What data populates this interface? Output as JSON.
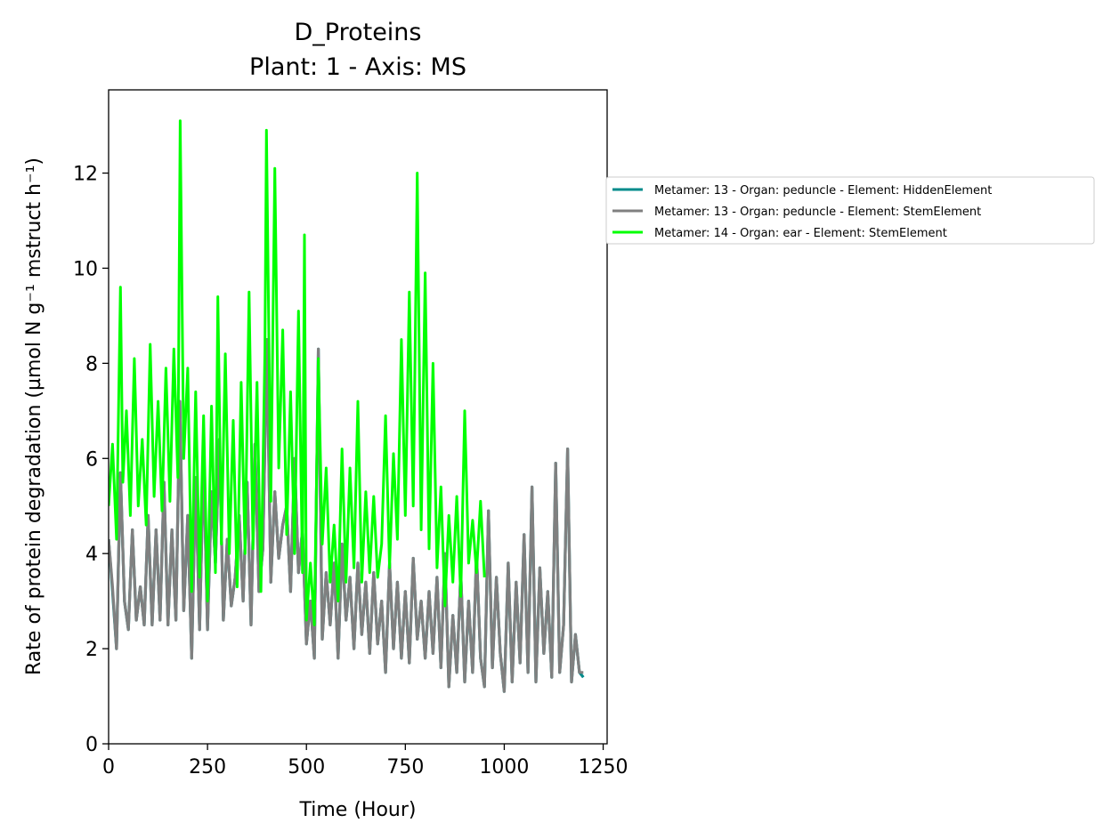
{
  "chart_data": {
    "type": "line",
    "title": "D_Proteins",
    "subtitle": "Plant: 1 - Axis: MS",
    "xlabel": "Time (Hour)",
    "ylabel": "Rate of protein degradation (µmol N g⁻¹ mstruct h⁻¹)",
    "xlim": [
      0,
      1260
    ],
    "ylim": [
      0,
      13.75
    ],
    "xticks": [
      0,
      250,
      500,
      750,
      1000,
      1250
    ],
    "xtick_labels": [
      "0",
      "250",
      "500",
      "750",
      "1000",
      "1250"
    ],
    "yticks": [
      0,
      2,
      4,
      6,
      8,
      10,
      12
    ],
    "ytick_labels": [
      "0",
      "2",
      "4",
      "6",
      "8",
      "10",
      "12"
    ],
    "grid": false,
    "legend_position": "right",
    "series": [
      {
        "name": "Metamer: 13 - Organ: peduncle - Element: HiddenElement",
        "color": "#008b8b",
        "x": [
          0,
          10,
          20,
          30,
          40,
          50,
          60,
          70,
          80,
          90,
          100,
          110,
          120,
          130,
          140,
          150,
          160,
          170,
          180,
          190,
          200,
          210,
          220,
          230,
          240,
          250,
          260,
          270,
          280,
          290,
          300,
          310,
          320,
          330,
          340,
          350,
          360,
          370,
          380,
          390,
          400,
          410,
          420,
          430,
          440,
          450,
          460,
          470,
          480,
          490,
          500,
          510,
          520,
          530,
          540,
          550,
          560,
          570,
          580,
          590,
          600,
          610,
          620,
          630,
          640,
          650,
          660,
          670,
          680,
          690,
          700,
          710,
          720,
          730,
          740,
          750,
          760,
          770,
          780,
          790,
          800,
          810,
          820,
          830,
          840,
          850,
          860,
          870,
          880,
          890,
          900,
          910,
          920,
          930,
          940,
          950,
          960,
          970,
          980,
          990,
          1000,
          1010,
          1020,
          1030,
          1040,
          1050,
          1060,
          1070,
          1080,
          1090,
          1100,
          1110,
          1120,
          1130,
          1140,
          1150,
          1160,
          1170,
          1180,
          1190,
          1200
        ],
        "y": [
          4.3,
          3.2,
          2.0,
          5.7,
          3.0,
          2.4,
          4.5,
          2.6,
          3.3,
          2.5,
          4.8,
          2.5,
          4.5,
          2.6,
          5.5,
          2.5,
          4.5,
          2.6,
          7.2,
          2.8,
          4.8,
          1.8,
          5.6,
          2.4,
          6.0,
          2.4,
          5.3,
          3.8,
          6.4,
          2.6,
          4.3,
          2.9,
          3.5,
          4.8,
          3.0,
          5.5,
          2.5,
          6.3,
          3.2,
          4.1,
          8.5,
          3.4,
          5.3,
          3.9,
          4.6,
          5.0,
          3.2,
          6.0,
          3.6,
          4.5,
          2.1,
          3.0,
          1.8,
          8.3,
          2.2,
          3.6,
          2.5,
          3.8,
          1.8,
          4.2,
          2.6,
          3.5,
          2.0,
          3.8,
          2.3,
          3.4,
          1.9,
          3.6,
          2.1,
          3.0,
          1.5,
          3.8,
          2.0,
          3.4,
          1.8,
          3.2,
          1.7,
          3.9,
          2.2,
          3.0,
          1.8,
          3.2,
          1.9,
          3.5,
          1.6,
          4.0,
          1.2,
          2.7,
          1.5,
          3.6,
          1.3,
          3.0,
          1.5,
          4.0,
          1.8,
          1.2,
          4.9,
          1.6,
          3.5,
          1.9,
          1.1,
          3.8,
          1.3,
          3.4,
          1.7,
          4.4,
          1.5,
          5.4,
          1.3,
          3.7,
          1.9,
          3.2,
          1.4,
          5.9,
          1.5,
          2.5,
          6.2,
          1.3,
          2.3,
          1.5,
          1.4
        ]
      },
      {
        "name": "Metamer: 13 - Organ: peduncle - Element: StemElement",
        "color": "#808080",
        "x": [
          0,
          10,
          20,
          30,
          40,
          50,
          60,
          70,
          80,
          90,
          100,
          110,
          120,
          130,
          140,
          150,
          160,
          170,
          180,
          190,
          200,
          210,
          220,
          230,
          240,
          250,
          260,
          270,
          280,
          290,
          300,
          310,
          320,
          330,
          340,
          350,
          360,
          370,
          380,
          390,
          400,
          410,
          420,
          430,
          440,
          450,
          460,
          470,
          480,
          490,
          500,
          510,
          520,
          530,
          540,
          550,
          560,
          570,
          580,
          590,
          600,
          610,
          620,
          630,
          640,
          650,
          660,
          670,
          680,
          690,
          700,
          710,
          720,
          730,
          740,
          750,
          760,
          770,
          780,
          790,
          800,
          810,
          820,
          830,
          840,
          850,
          860,
          870,
          880,
          890,
          900,
          910,
          920,
          930,
          940,
          950,
          960,
          970,
          980,
          990,
          1000,
          1010,
          1020,
          1030,
          1040,
          1050,
          1060,
          1070,
          1080,
          1090,
          1100,
          1110,
          1120,
          1130,
          1140,
          1150,
          1160,
          1170,
          1180,
          1190,
          1200
        ],
        "y": [
          4.3,
          3.3,
          2.0,
          5.7,
          3.0,
          2.4,
          4.5,
          2.6,
          3.3,
          2.5,
          4.8,
          2.5,
          4.5,
          2.6,
          5.5,
          2.5,
          4.5,
          2.6,
          7.2,
          2.8,
          4.8,
          1.8,
          5.6,
          2.4,
          6.0,
          2.4,
          5.3,
          3.8,
          6.4,
          2.6,
          4.3,
          2.9,
          3.5,
          4.8,
          3.0,
          5.5,
          2.5,
          6.3,
          3.2,
          4.1,
          8.5,
          3.4,
          5.3,
          3.9,
          4.6,
          5.0,
          3.2,
          6.0,
          3.6,
          4.5,
          2.1,
          3.0,
          1.8,
          8.3,
          2.2,
          3.6,
          2.5,
          3.8,
          1.8,
          4.2,
          2.6,
          3.5,
          2.0,
          3.8,
          2.3,
          3.4,
          1.9,
          3.6,
          2.1,
          3.0,
          1.5,
          3.8,
          2.0,
          3.4,
          1.8,
          3.2,
          1.7,
          3.9,
          2.2,
          3.0,
          1.8,
          3.2,
          1.9,
          3.5,
          1.6,
          4.0,
          1.2,
          2.7,
          1.5,
          3.6,
          1.3,
          3.0,
          1.5,
          4.0,
          1.8,
          1.2,
          4.9,
          1.6,
          3.5,
          1.9,
          1.1,
          3.8,
          1.3,
          3.4,
          1.7,
          4.4,
          1.5,
          5.4,
          1.3,
          3.7,
          1.9,
          3.2,
          1.4,
          5.9,
          1.5,
          2.5,
          6.2,
          1.3,
          2.3,
          1.5,
          1.5
        ]
      },
      {
        "name": "Metamer: 14 - Organ: ear - Element: StemElement",
        "color": "#00ff00",
        "x": [
          0,
          10,
          20,
          30,
          36,
          45,
          55,
          65,
          75,
          85,
          95,
          105,
          115,
          125,
          135,
          145,
          155,
          165,
          175,
          181,
          190,
          200,
          210,
          220,
          230,
          240,
          250,
          260,
          270,
          276,
          285,
          295,
          305,
          315,
          325,
          335,
          345,
          355,
          365,
          375,
          385,
          395,
          399,
          410,
          420,
          430,
          440,
          450,
          460,
          470,
          480,
          490,
          495,
          500,
          510,
          520,
          530,
          540,
          550,
          560,
          570,
          580,
          590,
          600,
          610,
          620,
          630,
          640,
          650,
          660,
          670,
          680,
          690,
          700,
          710,
          720,
          730,
          740,
          750,
          760,
          770,
          780,
          790,
          800,
          810,
          820,
          830,
          840,
          850,
          860,
          870,
          880,
          890,
          900,
          910,
          920,
          930,
          940,
          950
        ],
        "y": [
          5.0,
          6.3,
          4.3,
          9.6,
          5.5,
          7.0,
          4.8,
          8.1,
          5.0,
          6.4,
          4.6,
          8.4,
          5.2,
          7.2,
          4.9,
          7.9,
          5.1,
          8.3,
          5.6,
          13.1,
          6.0,
          7.9,
          3.2,
          7.4,
          3.5,
          6.9,
          3.0,
          7.1,
          3.6,
          9.4,
          4.2,
          8.2,
          4.0,
          6.8,
          3.3,
          7.6,
          4.0,
          9.5,
          4.1,
          7.6,
          3.2,
          8.3,
          12.9,
          5.1,
          12.1,
          5.8,
          8.7,
          4.4,
          7.4,
          4.0,
          9.1,
          3.6,
          10.7,
          2.6,
          3.8,
          2.5,
          8.1,
          4.2,
          5.8,
          3.4,
          4.6,
          3.0,
          6.2,
          3.4,
          5.8,
          3.7,
          7.2,
          3.4,
          5.3,
          3.6,
          5.2,
          3.5,
          4.2,
          6.9,
          3.7,
          6.1,
          4.3,
          8.5,
          4.8,
          9.5,
          5.0,
          12.0,
          4.5,
          9.9,
          4.1,
          8.0,
          3.7,
          5.4,
          2.9,
          4.8,
          3.4,
          5.2,
          3.1,
          7.0,
          3.8,
          4.7,
          3.6,
          5.1,
          3.5
        ]
      }
    ]
  }
}
